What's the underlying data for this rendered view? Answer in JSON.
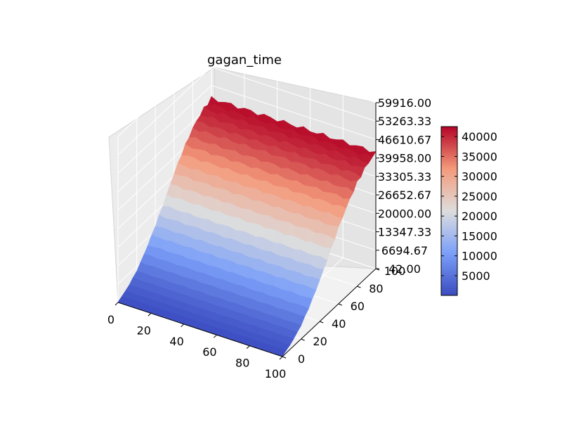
{
  "chart_data": {
    "type": "surface3d",
    "title": "gagan_time",
    "x_ticks": [
      "0",
      "20",
      "40",
      "60",
      "80",
      "100"
    ],
    "y_ticks": [
      "0",
      "20",
      "40",
      "60",
      "80",
      "100"
    ],
    "z_ticks": [
      "42.00",
      "6694.67",
      "13347.33",
      "20000.00",
      "26652.67",
      "33305.33",
      "39958.00",
      "46610.67",
      "53263.33",
      "59916.00"
    ],
    "xlim": [
      0,
      100
    ],
    "ylim": [
      0,
      100
    ],
    "zlim": [
      42,
      59916
    ],
    "surface_profile_along_y": {
      "y": [
        0,
        10,
        20,
        30,
        40,
        50,
        60,
        70,
        80,
        90,
        100
      ],
      "z": [
        200,
        2000,
        5000,
        9500,
        15000,
        21000,
        27500,
        33000,
        37500,
        40500,
        42000
      ]
    },
    "colormap": "coolwarm",
    "colorbar": {
      "ticks": [
        "5000",
        "10000",
        "15000",
        "20000",
        "25000",
        "30000",
        "35000",
        "40000"
      ],
      "range": [
        42,
        42500
      ]
    },
    "grid": true
  }
}
